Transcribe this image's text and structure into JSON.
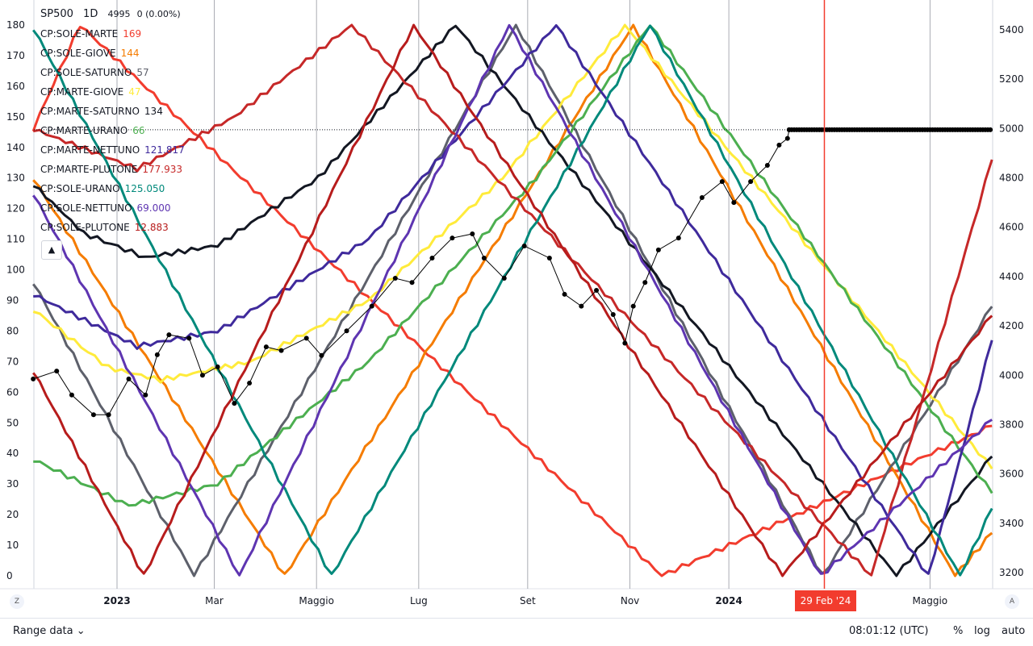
{
  "header": {
    "symbol": "SP500",
    "interval": "1D",
    "price": "4995",
    "change": "0 (0.00%)"
  },
  "legend": [
    {
      "name": "CP:SOLE-MARTE",
      "value": "169",
      "color": "#f23c2e"
    },
    {
      "name": "CP:SOLE-GIOVE",
      "value": "144",
      "color": "#f57c00"
    },
    {
      "name": "CP:SOLE-SATURNO",
      "value": "57",
      "color": "#5d606b"
    },
    {
      "name": "CP:MARTE-GIOVE",
      "value": "47",
      "color": "#ffeb3b"
    },
    {
      "name": "CP:MARTE-SATURNO",
      "value": "134",
      "color": "#131722"
    },
    {
      "name": "CP:MARTE-URANO",
      "value": "66",
      "color": "#4caf50"
    },
    {
      "name": "CP:MARTE-NETTUNO",
      "value": "121.817",
      "color": "#3f2a9c"
    },
    {
      "name": "CP:MARTE-PLUTONE",
      "value": "177.933",
      "color": "#c62828"
    },
    {
      "name": "CP:SOLE-URANO",
      "value": "125.050",
      "color": "#00897b"
    },
    {
      "name": "CP:SOLE-NETTUNO",
      "value": "69.000",
      "color": "#5e35b1"
    },
    {
      "name": "CP:SOLE-PLUTONE",
      "value": "12.883",
      "color": "#b71c1c"
    }
  ],
  "collapse_icon": "▲",
  "axis_buttons": {
    "left": "Z",
    "right": "A"
  },
  "crosshair_date": "29 Feb '24",
  "footer": {
    "range": "Range data",
    "time": "08:01:12 (UTC)",
    "percent": "%",
    "log": "log",
    "auto": "auto"
  },
  "chart_data": {
    "type": "line",
    "x_unit": "days since 2023-01-01",
    "xlim": [
      -50,
      522
    ],
    "left_axis": {
      "range": [
        0,
        180
      ],
      "ticks": [
        0,
        10,
        20,
        30,
        40,
        50,
        60,
        70,
        80,
        90,
        100,
        110,
        120,
        130,
        140,
        150,
        160,
        170,
        180
      ]
    },
    "right_axis": {
      "range": [
        3200,
        5400
      ],
      "ticks": [
        3200,
        3400,
        3600,
        3800,
        4000,
        4200,
        4400,
        4600,
        4800,
        5000,
        5200,
        5400
      ]
    },
    "x_ticks": [
      {
        "label": "2023",
        "day": 0,
        "bold": true
      },
      {
        "label": "Mar",
        "day": 58
      },
      {
        "label": "Maggio",
        "day": 119
      },
      {
        "label": "Lug",
        "day": 180
      },
      {
        "label": "Set",
        "day": 245
      },
      {
        "label": "Nov",
        "day": 306
      },
      {
        "label": "2024",
        "day": 365,
        "bold": true
      },
      {
        "label": "Maggio",
        "day": 485
      }
    ],
    "crosshair_day": 422,
    "series": [
      {
        "name": "CP:SOLE-MARTE",
        "color": "#f23c2e",
        "points": [
          [
            -50,
            146
          ],
          [
            -22,
            180
          ],
          [
            325,
            0
          ],
          [
            522,
            49
          ]
        ]
      },
      {
        "name": "CP:SOLE-GIOVE",
        "color": "#f57c00",
        "points": [
          [
            -50,
            130
          ],
          [
            100,
            0
          ],
          [
            308,
            180
          ],
          [
            500,
            0
          ],
          [
            522,
            14
          ]
        ]
      },
      {
        "name": "CP:SOLE-SATURNO",
        "color": "#5d606b",
        "points": [
          [
            -50,
            96
          ],
          [
            46,
            0
          ],
          [
            238,
            180
          ],
          [
            421,
            0
          ],
          [
            522,
            88
          ]
        ]
      },
      {
        "name": "CP:MARTE-GIOVE",
        "color": "#ffeb3b",
        "points": [
          [
            -50,
            87
          ],
          [
            -5,
            68
          ],
          [
            26,
            64
          ],
          [
            80,
            70
          ],
          [
            150,
            90
          ],
          [
            230,
            130
          ],
          [
            303,
            180
          ],
          [
            522,
            35
          ]
        ]
      },
      {
        "name": "CP:MARTE-SATURNO",
        "color": "#131722",
        "points": [
          [
            -50,
            128
          ],
          [
            -20,
            112
          ],
          [
            17,
            104
          ],
          [
            60,
            108
          ],
          [
            120,
            130
          ],
          [
            202,
            180
          ],
          [
            465,
            0
          ],
          [
            522,
            39
          ]
        ]
      },
      {
        "name": "CP:MARTE-URANO",
        "color": "#4caf50",
        "points": [
          [
            -50,
            38
          ],
          [
            7,
            23
          ],
          [
            60,
            30
          ],
          [
            150,
            70
          ],
          [
            250,
            130
          ],
          [
            318,
            180
          ],
          [
            522,
            27
          ]
        ]
      },
      {
        "name": "CP:MARTE-NETTUNO",
        "color": "#3f2a9c",
        "points": [
          [
            -50,
            92
          ],
          [
            12,
            75
          ],
          [
            60,
            80
          ],
          [
            150,
            110
          ],
          [
            262,
            180
          ],
          [
            484,
            0
          ],
          [
            522,
            77
          ]
        ]
      },
      {
        "name": "CP:MARTE-PLUTONE",
        "color": "#c62828",
        "points": [
          [
            -50,
            146
          ],
          [
            12,
            133
          ],
          [
            70,
            150
          ],
          [
            140,
            180
          ],
          [
            450,
            0
          ],
          [
            522,
            136
          ]
        ]
      },
      {
        "name": "CP:SOLE-URANO",
        "color": "#00897b",
        "points": [
          [
            -50,
            179
          ],
          [
            128,
            0
          ],
          [
            318,
            180
          ],
          [
            503,
            0
          ],
          [
            522,
            22
          ]
        ]
      },
      {
        "name": "CP:SOLE-NETTUNO",
        "color": "#5e35b1",
        "points": [
          [
            -50,
            125
          ],
          [
            73,
            0
          ],
          [
            234,
            180
          ],
          [
            420,
            0
          ],
          [
            522,
            51
          ]
        ]
      },
      {
        "name": "CP:SOLE-PLUTONE",
        "color": "#b71c1c",
        "points": [
          [
            -50,
            67
          ],
          [
            16,
            0
          ],
          [
            177,
            180
          ],
          [
            397,
            0
          ],
          [
            522,
            85
          ]
        ]
      }
    ],
    "sp500": {
      "name": "SP500",
      "color": "#000000",
      "points": [
        [
          -50,
          3985
        ],
        [
          -36,
          4017
        ],
        [
          -27,
          3920
        ],
        [
          -14,
          3840
        ],
        [
          -5,
          3840
        ],
        [
          7,
          3985
        ],
        [
          17,
          3920
        ],
        [
          24,
          4083
        ],
        [
          31,
          4164
        ],
        [
          43,
          4150
        ],
        [
          51,
          4000
        ],
        [
          60,
          4034
        ],
        [
          70,
          3886
        ],
        [
          79,
          3968
        ],
        [
          89,
          4115
        ],
        [
          98,
          4100
        ],
        [
          113,
          4150
        ],
        [
          122,
          4080
        ],
        [
          137,
          4180
        ],
        [
          152,
          4280
        ],
        [
          166,
          4393
        ],
        [
          176,
          4376
        ],
        [
          188,
          4475
        ],
        [
          200,
          4556
        ],
        [
          212,
          4573
        ],
        [
          219,
          4475
        ],
        [
          231,
          4393
        ],
        [
          243,
          4524
        ],
        [
          258,
          4475
        ],
        [
          267,
          4328
        ],
        [
          277,
          4280
        ],
        [
          286,
          4344
        ],
        [
          296,
          4246
        ],
        [
          303,
          4130
        ],
        [
          308,
          4280
        ],
        [
          315,
          4376
        ],
        [
          323,
          4508
        ],
        [
          335,
          4556
        ],
        [
          349,
          4720
        ],
        [
          361,
          4785
        ],
        [
          368,
          4700
        ],
        [
          378,
          4785
        ],
        [
          388,
          4851
        ],
        [
          395,
          4933
        ],
        [
          400,
          4960
        ],
        [
          401,
          4995
        ]
      ],
      "flat_value": 4995,
      "flat_until": 522
    }
  }
}
